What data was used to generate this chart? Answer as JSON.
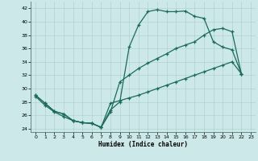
{
  "xlabel": "Humidex (Indice chaleur)",
  "bg_color": "#cce8e8",
  "line_color": "#1a6b5a",
  "xlim": [
    -0.5,
    23.5
  ],
  "ylim": [
    23.5,
    43
  ],
  "yticks": [
    24,
    26,
    28,
    30,
    32,
    34,
    36,
    38,
    40,
    42
  ],
  "xticks": [
    0,
    1,
    2,
    3,
    4,
    5,
    6,
    7,
    8,
    9,
    10,
    11,
    12,
    13,
    14,
    15,
    16,
    17,
    18,
    19,
    20,
    21,
    22,
    23
  ],
  "curve1_x": [
    0,
    1,
    2,
    3,
    4,
    5,
    6,
    7,
    8,
    9,
    10,
    11,
    12,
    13,
    14,
    15,
    16,
    17,
    18,
    19,
    20,
    21,
    22
  ],
  "curve1_y": [
    29,
    27.8,
    26.6,
    26.2,
    25.2,
    24.9,
    24.8,
    24.2,
    26.8,
    28.0,
    36.2,
    39.5,
    41.5,
    41.8,
    41.5,
    41.5,
    41.6,
    40.8,
    40.5,
    37.0,
    36.2,
    35.8,
    32.2
  ],
  "curve2_x": [
    0,
    1,
    2,
    3,
    4,
    5,
    6,
    7,
    8,
    9,
    10,
    11,
    12,
    13,
    14,
    15,
    16,
    17,
    18,
    19,
    20,
    21,
    22
  ],
  "curve2_y": [
    28.8,
    27.5,
    26.5,
    25.8,
    25.2,
    24.9,
    24.8,
    24.2,
    27.8,
    28.2,
    28.6,
    29.0,
    29.5,
    30.0,
    30.5,
    31.0,
    31.5,
    32.0,
    32.5,
    33.0,
    33.5,
    34.0,
    32.2
  ],
  "curve3_x": [
    0,
    1,
    2,
    3,
    4,
    5,
    6,
    7,
    8,
    9,
    10,
    11,
    12,
    13,
    14,
    15,
    16,
    17,
    18,
    19,
    20,
    21,
    22
  ],
  "curve3_y": [
    29,
    27.8,
    26.6,
    26.2,
    25.2,
    24.9,
    24.8,
    24.2,
    26.5,
    31.0,
    32.0,
    33.0,
    33.8,
    34.5,
    35.2,
    36.0,
    36.5,
    37.0,
    38.0,
    38.8,
    39.0,
    38.5,
    32.2
  ]
}
